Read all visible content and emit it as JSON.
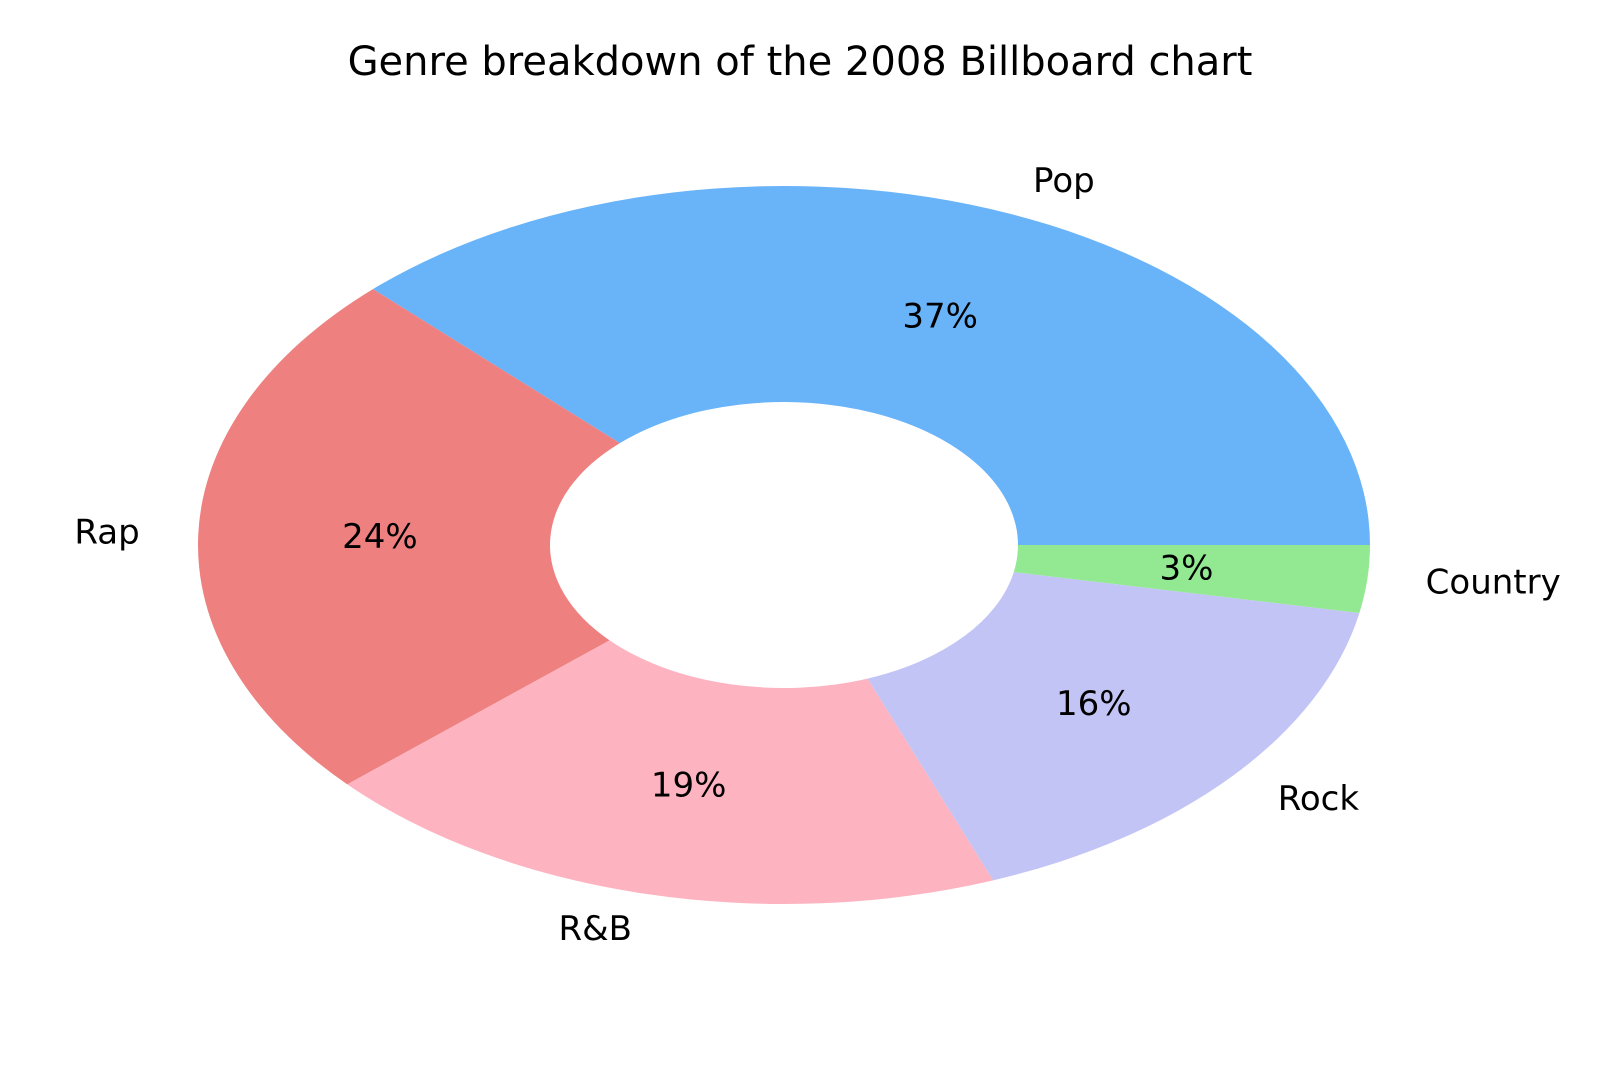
{
  "chart_data": {
    "type": "pie",
    "title": "Genre breakdown of the 2008 Billboard chart",
    "donut": true,
    "slices": [
      {
        "label": "Pop",
        "value": 37,
        "pct_label": "37%",
        "color": "#69b3f9"
      },
      {
        "label": "Rap",
        "value": 24,
        "pct_label": "24%",
        "color": "#ee8080"
      },
      {
        "label": "R&B",
        "value": 19,
        "pct_label": "19%",
        "color": "#fdb3c0"
      },
      {
        "label": "Rock",
        "value": 16,
        "pct_label": "16%",
        "color": "#c3c4f6"
      },
      {
        "label": "Country",
        "value": 3,
        "pct_label": "3%",
        "color": "#92e992"
      }
    ]
  }
}
